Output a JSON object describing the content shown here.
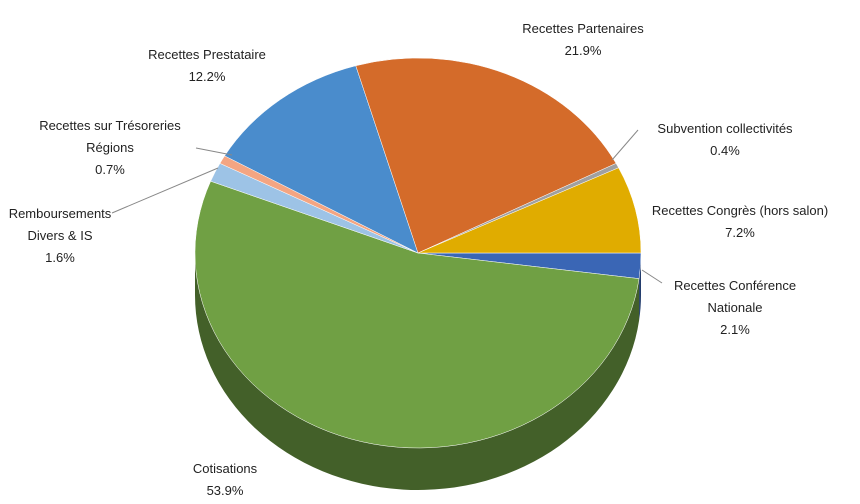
{
  "chart_data": {
    "type": "pie",
    "categories": [
      "Recettes Conférence Nationale",
      "Cotisations",
      "Remboursements Divers & IS",
      "Recettes sur Trésoreries Régions",
      "Recettes Prestataire",
      "Recettes Partenaires",
      "Subvention collectivités",
      "Recettes Congrès (hors salon)"
    ],
    "values": [
      2.1,
      53.9,
      1.6,
      0.7,
      12.2,
      21.9,
      0.4,
      7.2
    ],
    "value_labels": [
      "2.1%",
      "53.9%",
      "1.6%",
      "0.7%",
      "12.2%",
      "21.9%",
      "0.4%",
      "7.2%"
    ],
    "colors": [
      "#3a66b5",
      "#70a044",
      "#9dc3e6",
      "#f4a582",
      "#4a8ccc",
      "#d46b2a",
      "#a0a0a0",
      "#e0ac00"
    ]
  }
}
